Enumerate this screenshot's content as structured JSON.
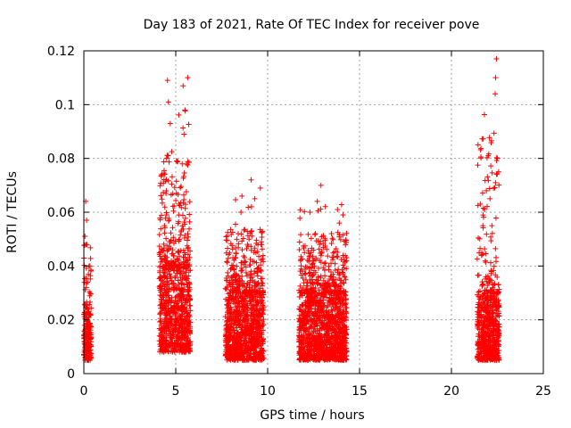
{
  "chart_data": {
    "type": "scatter",
    "title": "Day 183 of 2021, Rate Of TEC Index for receiver pove",
    "xlabel": "GPS time / hours",
    "ylabel": "ROTI / TECUs",
    "xlim": [
      0,
      25
    ],
    "ylim": [
      0,
      0.12
    ],
    "x_ticks": [
      0,
      5,
      10,
      15,
      20,
      25
    ],
    "x_tick_labels": [
      "0",
      "5",
      "10",
      "15",
      "20",
      "25"
    ],
    "y_ticks": [
      0,
      0.02,
      0.04,
      0.06,
      0.08,
      0.1,
      0.12
    ],
    "y_tick_labels": [
      "0",
      "0.02",
      "0.04",
      "0.06",
      "0.08",
      "0.1",
      "0.12"
    ],
    "grid": true,
    "marker": "+",
    "color": "#ff0000",
    "clusters": [
      {
        "x_range": [
          0.0,
          0.4
        ],
        "y_core": [
          0.005,
          0.022
        ],
        "y_peak": 0.064,
        "outliers": [
          [
            0.1,
            0.064
          ],
          [
            0.15,
            0.057
          ],
          [
            0.12,
            0.048
          ],
          [
            0.2,
            0.034
          ]
        ]
      },
      {
        "x_range": [
          4.1,
          5.8
        ],
        "y_core": [
          0.008,
          0.04
        ],
        "y_peak": 0.11,
        "outliers": [
          [
            4.55,
            0.109
          ],
          [
            5.65,
            0.11
          ],
          [
            5.4,
            0.107
          ],
          [
            4.6,
            0.101
          ],
          [
            5.5,
            0.098
          ],
          [
            4.7,
            0.093
          ],
          [
            5.45,
            0.089
          ],
          [
            4.5,
            0.08
          ],
          [
            5.35,
            0.078
          ]
        ]
      },
      {
        "x_range": [
          7.7,
          9.8
        ],
        "y_core": [
          0.005,
          0.03
        ],
        "y_peak": 0.072,
        "outliers": [
          [
            9.1,
            0.072
          ],
          [
            9.6,
            0.069
          ],
          [
            8.6,
            0.066
          ],
          [
            9.3,
            0.065
          ],
          [
            8.55,
            0.06
          ],
          [
            8.4,
            0.052
          ]
        ]
      },
      {
        "x_range": [
          11.7,
          14.3
        ],
        "y_core": [
          0.005,
          0.03
        ],
        "y_peak": 0.07,
        "outliers": [
          [
            12.9,
            0.07
          ],
          [
            12.7,
            0.064
          ],
          [
            12.3,
            0.06
          ],
          [
            13.8,
            0.061
          ],
          [
            14.1,
            0.059
          ],
          [
            13.9,
            0.056
          ],
          [
            12.6,
            0.052
          ]
        ]
      },
      {
        "x_range": [
          21.4,
          22.6
        ],
        "y_core": [
          0.005,
          0.03
        ],
        "y_peak": 0.117,
        "outliers": [
          [
            22.45,
            0.117
          ],
          [
            22.4,
            0.11
          ],
          [
            22.38,
            0.104
          ],
          [
            22.0,
            0.081
          ],
          [
            22.5,
            0.08
          ],
          [
            22.4,
            0.071
          ],
          [
            21.9,
            0.068
          ],
          [
            22.1,
            0.065
          ],
          [
            21.8,
            0.061
          ],
          [
            22.2,
            0.055
          ]
        ]
      }
    ]
  }
}
